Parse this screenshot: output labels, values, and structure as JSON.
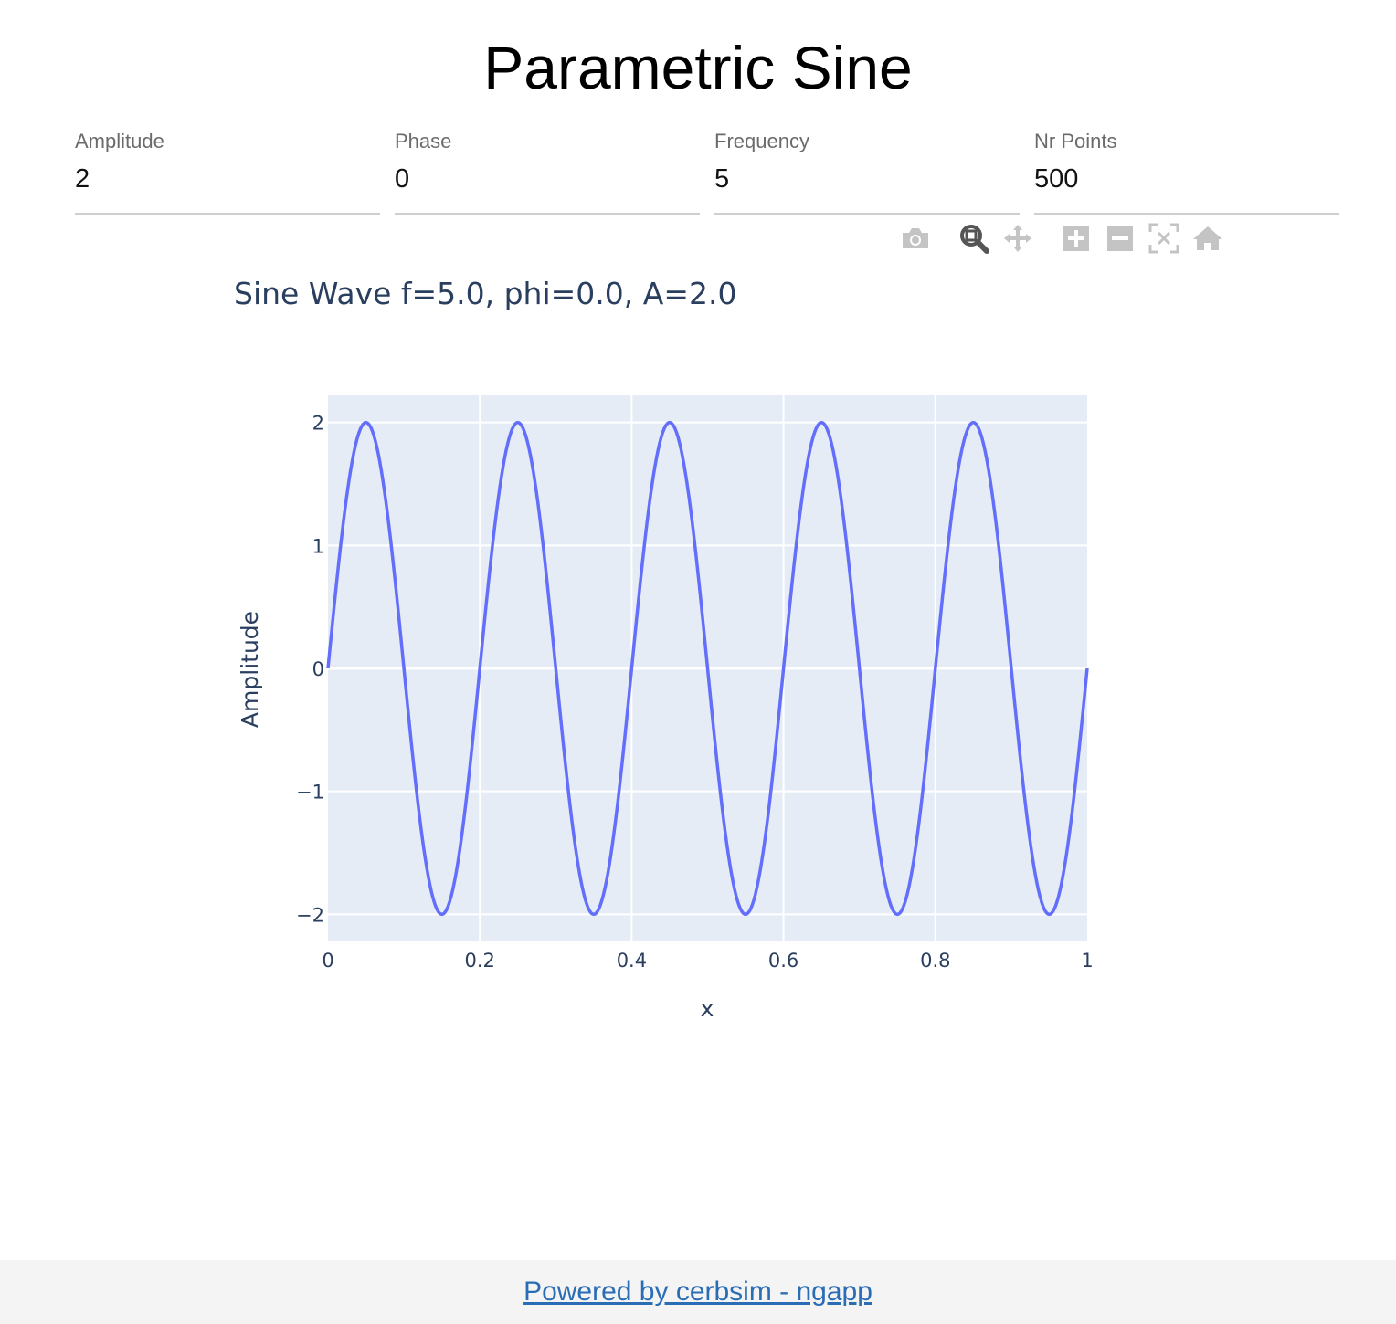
{
  "page": {
    "title": "Parametric Sine"
  },
  "params": [
    {
      "label": "Amplitude",
      "value": "2"
    },
    {
      "label": "Phase",
      "value": "0"
    },
    {
      "label": "Frequency",
      "value": "5"
    },
    {
      "label": "Nr Points",
      "value": "500"
    }
  ],
  "modebar": {
    "buttons": [
      {
        "name": "camera-icon",
        "active": false
      },
      {
        "name": "zoom-icon",
        "active": true
      },
      {
        "name": "pan-icon",
        "active": false
      },
      {
        "name": "zoom-in-icon",
        "active": false
      },
      {
        "name": "zoom-out-icon",
        "active": false
      },
      {
        "name": "autoscale-icon",
        "active": false
      },
      {
        "name": "reset-axes-icon",
        "active": false
      }
    ]
  },
  "chart_data": {
    "type": "line",
    "title": "Sine Wave f=5.0, phi=0.0, A=2.0",
    "xlabel": "x",
    "ylabel": "Amplitude",
    "xlim": [
      0,
      1
    ],
    "ylim": [
      -2.22,
      2.22
    ],
    "xticks": [
      0,
      0.2,
      0.4,
      0.6,
      0.8,
      1
    ],
    "xtick_labels": [
      "0",
      "0.2",
      "0.4",
      "0.6",
      "0.8",
      "1"
    ],
    "yticks": [
      -2,
      -1,
      0,
      1,
      2
    ],
    "ytick_labels": [
      "−2",
      "−1",
      "0",
      "1",
      "2"
    ],
    "grid": true,
    "function": {
      "amplitude": 2,
      "phase": 0,
      "frequency": 5
    },
    "num_points": 500,
    "line_color": "#636efa",
    "plot_bg": "#e5ecf6"
  },
  "footer": {
    "link_text": "Powered by cerbsim - ngapp"
  }
}
